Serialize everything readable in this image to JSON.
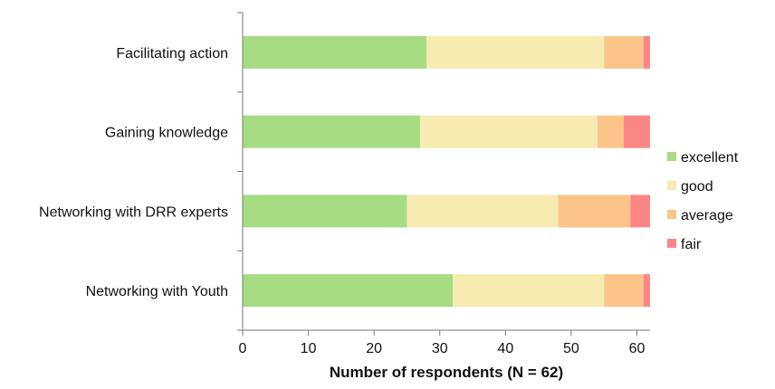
{
  "chart_data": {
    "type": "bar",
    "orientation": "horizontal",
    "stacked": true,
    "title": "",
    "xlabel": "Number of respondents (N = 62)",
    "ylabel": "",
    "xlim": [
      0,
      62
    ],
    "xticks": [
      0,
      10,
      20,
      30,
      40,
      50,
      60
    ],
    "grid": false,
    "legend_position": "right",
    "categories": [
      "Facilitating action",
      "Gaining knowledge",
      "Networking with DRR experts",
      "Networking with Youth"
    ],
    "series": [
      {
        "name": "excellent",
        "color": "#a6dc82",
        "values": [
          28,
          27,
          25,
          32
        ]
      },
      {
        "name": "good",
        "color": "#f8ebb1",
        "values": [
          27,
          27,
          23,
          23
        ]
      },
      {
        "name": "average",
        "color": "#fbc58a",
        "values": [
          6,
          4,
          11,
          6
        ]
      },
      {
        "name": "fair",
        "color": "#fc8686",
        "values": [
          1,
          4,
          3,
          1
        ]
      }
    ]
  }
}
